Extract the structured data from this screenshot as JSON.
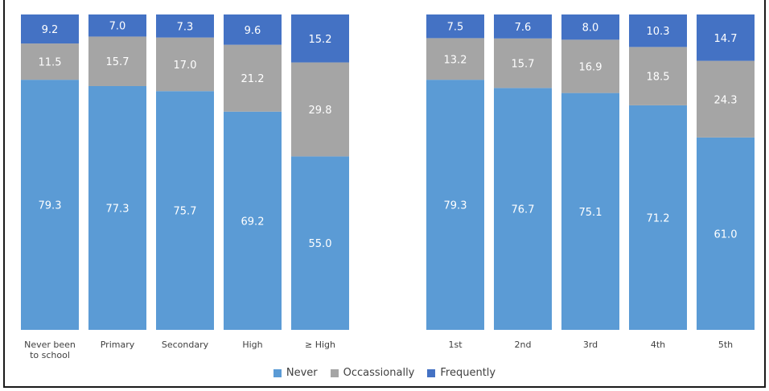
{
  "chart_data": {
    "type": "bar",
    "stacked": true,
    "categories": [
      "Never been to school",
      "Primary",
      "Secondary",
      "High",
      "≥ High",
      "1st",
      "2nd",
      "3rd",
      "4th",
      "5th"
    ],
    "category_lines": [
      [
        "Never been",
        "to school"
      ],
      [
        "Primary"
      ],
      [
        "Secondary"
      ],
      [
        "High"
      ],
      [
        "≥ High"
      ],
      [
        "1st"
      ],
      [
        "2nd"
      ],
      [
        "3rd"
      ],
      [
        "4th"
      ],
      [
        "5th"
      ]
    ],
    "groups": [
      [
        0,
        1,
        2,
        3,
        4
      ],
      [
        5,
        6,
        7,
        8,
        9
      ]
    ],
    "series": [
      {
        "name": "Never",
        "color": "#5b9bd5",
        "values": [
          79.3,
          77.3,
          75.7,
          69.2,
          55.0,
          79.3,
          76.7,
          75.1,
          71.2,
          61.0
        ],
        "labels": [
          "79.3",
          "77.3",
          "75.7",
          "69.2",
          "55.0",
          "79.3",
          "76.7",
          "75.1",
          "71.2",
          "61.0"
        ]
      },
      {
        "name": "Occassionally",
        "color": "#a5a5a5",
        "values": [
          11.5,
          15.7,
          17.0,
          21.2,
          29.8,
          13.2,
          15.7,
          16.9,
          18.5,
          24.3
        ],
        "labels": [
          "11.5",
          "15.7",
          "17.0",
          "21.2",
          "29.8",
          "13.2",
          "15.7",
          "16.9",
          "18.5",
          "24.3"
        ]
      },
      {
        "name": "Frequently",
        "color": "#4472c4",
        "values": [
          9.2,
          7.0,
          7.3,
          9.6,
          15.2,
          7.5,
          7.6,
          8.0,
          10.3,
          14.7
        ],
        "labels": [
          "9.2",
          "7.0",
          "7.3",
          "9.6",
          "15.2",
          "7.5",
          "7.6",
          "8.0",
          "10.3",
          "14.7"
        ]
      }
    ],
    "ylim": [
      0,
      100
    ],
    "legend_position": "bottom",
    "grid": false
  },
  "legend": {
    "items": [
      {
        "label": "Never",
        "color": "#5b9bd5"
      },
      {
        "label": "Occassionally",
        "color": "#a5a5a5"
      },
      {
        "label": "Frequently",
        "color": "#4472c4"
      }
    ]
  }
}
